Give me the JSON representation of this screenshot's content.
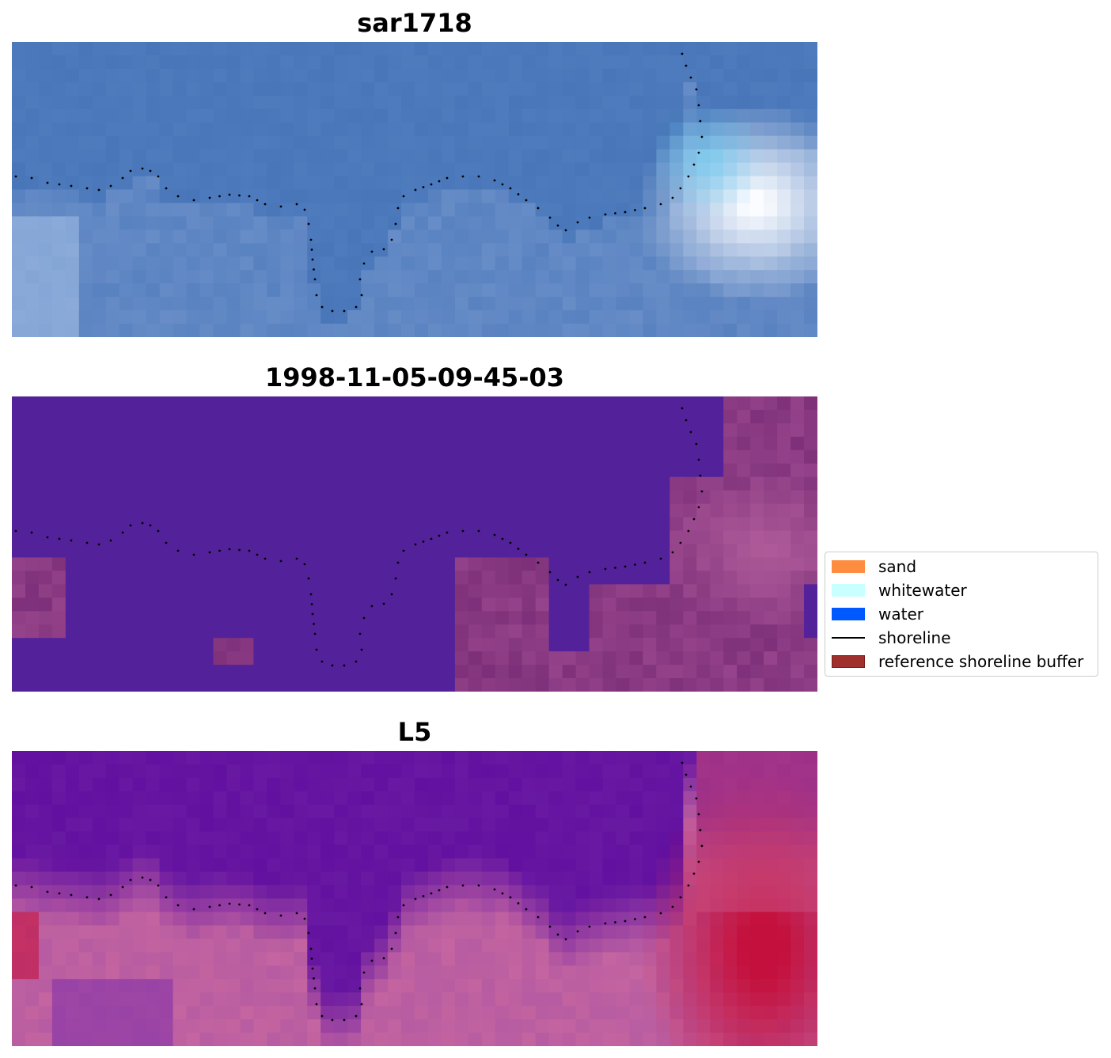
{
  "panels": [
    {
      "title": "sar1718",
      "kind": "rgb"
    },
    {
      "title": "1998-11-05-09-45-03",
      "kind": "classified"
    },
    {
      "title": "L5",
      "kind": "index"
    }
  ],
  "legend": {
    "items": [
      {
        "label": "sand",
        "type": "patch",
        "color": "#ff8c3f"
      },
      {
        "label": "whitewater",
        "type": "patch",
        "color": "#c8ffff"
      },
      {
        "label": "water",
        "type": "patch",
        "color": "#0059ff"
      },
      {
        "label": "shoreline",
        "type": "line",
        "color": "#000000"
      },
      {
        "label": "reference shoreline buffer",
        "type": "patch",
        "color": "#a0302c",
        "edge": "#7a1d1a"
      }
    ]
  },
  "colors": {
    "classified_water": "#53229a",
    "classified_land": "#7b3079",
    "index_low": "#5c0aa0",
    "index_high": "#c40a3a",
    "rgb_base": "#4a74b8",
    "rgb_bright": "#ffffff"
  }
}
